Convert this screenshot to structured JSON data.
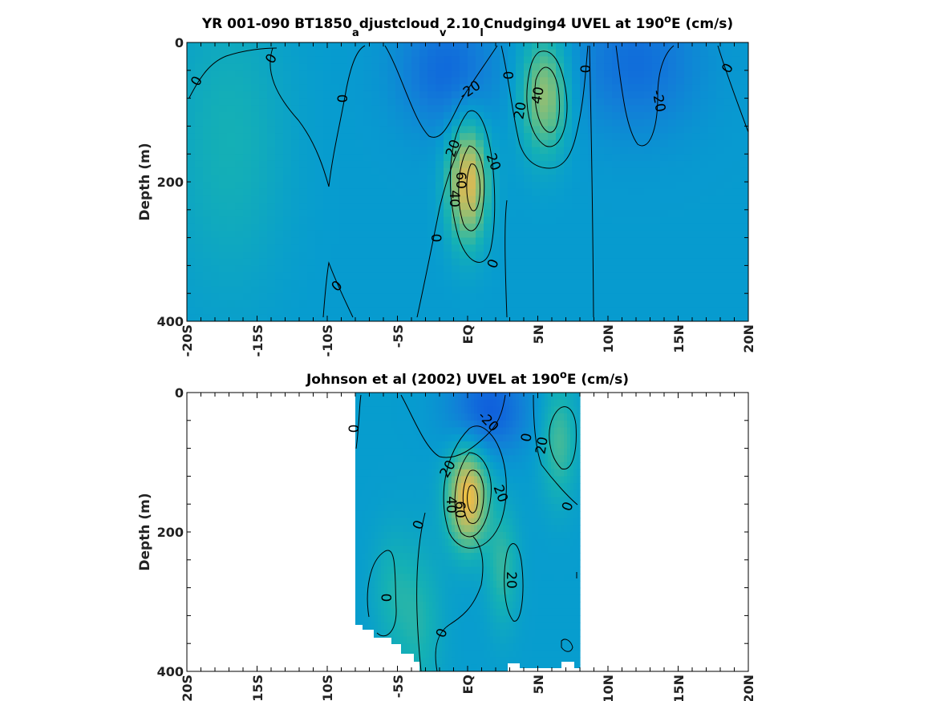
{
  "chart_data": [
    {
      "type": "heatmap",
      "title_parts": [
        "YR 001-090 BT1850",
        "a",
        "djustcloud",
        "v",
        "2.10",
        "l",
        "Cnudging4 UVEL at 190",
        "o",
        "E (cm/s)"
      ],
      "xlabel": "",
      "ylabel": "Depth (m)",
      "x_ticks": [
        "-20S",
        "-15S",
        "-10S",
        "-5S",
        "EQ",
        "5N",
        "10N",
        "15N",
        "20N"
      ],
      "y_ticks": [
        "0",
        "200",
        "400"
      ],
      "xlim": [
        -20,
        20
      ],
      "ylim": [
        0,
        400
      ],
      "colormap": "parula",
      "contour_interval": 20,
      "background": 5,
      "vmin": -40,
      "vmax": 80,
      "cores": [
        {
          "lat": 0,
          "depth": 200,
          "value": 58,
          "sx": 1.0,
          "sz": 60
        },
        {
          "lat": 5.5,
          "depth": 75,
          "value": 42,
          "sx": 1.2,
          "sz": 60
        },
        {
          "lat": -1.5,
          "depth": 40,
          "value": -24,
          "sx": 2.5,
          "sz": 60
        },
        {
          "lat": 12,
          "depth": 30,
          "value": -22,
          "sx": 3.2,
          "sz": 70
        },
        {
          "lat": -17,
          "depth": 140,
          "value": 14,
          "sx": 3,
          "sz": 150
        }
      ],
      "contour_labels": [
        "0",
        "0",
        "0",
        "-20",
        "0",
        "20",
        "40",
        "0",
        "-20",
        "0",
        "20",
        "20",
        "60",
        "40",
        "0",
        "0",
        "0"
      ]
    },
    {
      "type": "heatmap",
      "title_parts": [
        "Johnson et al (2002) UVEL at 190",
        "o",
        "E (cm/s)"
      ],
      "xlabel": "",
      "ylabel": "Depth (m)",
      "x_ticks": [
        "-20S",
        "-15S",
        "-10S",
        "-5S",
        "EQ",
        "5N",
        "10N",
        "15N",
        "20N"
      ],
      "y_ticks": [
        "0",
        "200",
        "400"
      ],
      "xlim": [
        -20,
        20
      ],
      "ylim": [
        0,
        400
      ],
      "data_lat_range": [
        -8,
        8
      ],
      "colormap": "parula",
      "contour_interval": 20,
      "background": 6,
      "vmin": -40,
      "vmax": 80,
      "cores": [
        {
          "lat": 0,
          "depth": 150,
          "value": 62,
          "sx": 1.0,
          "sz": 50
        },
        {
          "lat": 1.5,
          "depth": 25,
          "value": -30,
          "sx": 2.0,
          "sz": 45
        },
        {
          "lat": 6.5,
          "depth": 70,
          "value": 24,
          "sx": 0.9,
          "sz": 60
        },
        {
          "lat": 2.5,
          "depth": 250,
          "value": 20,
          "sx": 0.8,
          "sz": 60
        },
        {
          "lat": -3.5,
          "depth": 330,
          "value": 16,
          "sx": 1.2,
          "sz": 80
        },
        {
          "lat": -5.5,
          "depth": 280,
          "value": 12,
          "sx": 1,
          "sz": 60
        }
      ],
      "contour_labels": [
        "0",
        "-20",
        "0",
        "20",
        "20",
        "40",
        "60",
        "20",
        "0",
        "0",
        "20",
        "0",
        "0"
      ]
    }
  ]
}
